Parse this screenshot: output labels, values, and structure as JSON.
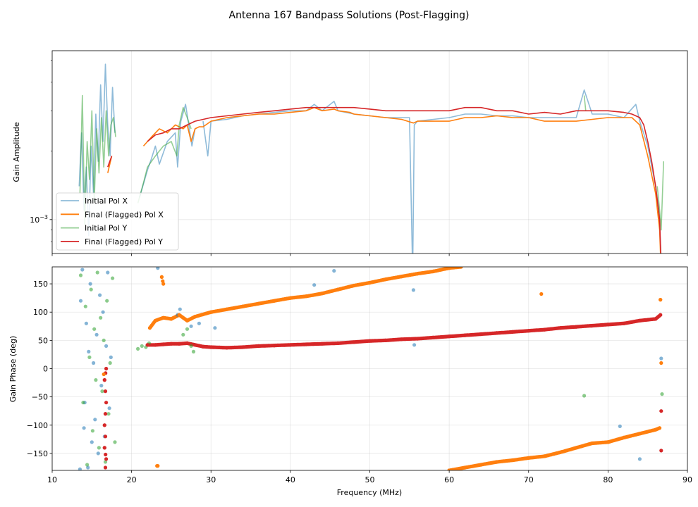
{
  "chart_data": [
    {
      "type": "line",
      "title": "Antenna 167 Bandpass Solutions (Post-Flagging)",
      "xlabel": "",
      "ylabel": "Gain Amplitude",
      "yscale": "log",
      "xlim": [
        10,
        90
      ],
      "ylim": [
        0.00071,
        0.0055
      ],
      "yticks": [
        {
          "value": 0.001,
          "label": "10^-3"
        }
      ],
      "grid": true,
      "legend_position": "lower-left",
      "series": [
        {
          "name": "Initial Pol X",
          "color": "#1f77b4",
          "alpha": 0.5,
          "x": [
            13.4,
            13.7,
            14.0,
            14.3,
            14.6,
            14.9,
            15.2,
            15.5,
            15.8,
            16.1,
            16.4,
            16.7,
            17.0,
            17.3,
            17.6,
            17.9,
            null,
            21.0,
            22.0,
            22.5,
            23.0,
            23.5,
            24.5,
            25.5,
            25.8,
            26.2,
            26.8,
            27.2,
            27.6,
            28.0,
            null,
            29.0,
            29.6,
            30.0,
            32.0,
            34.0,
            36.0,
            38.0,
            40.0,
            42.0,
            43.0,
            44.0,
            45.5,
            46.0,
            48.0,
            50.0,
            52.0,
            54.0,
            55.0,
            55.4,
            55.6,
            56.0,
            58.0,
            60.0,
            62.0,
            64.0,
            66.0,
            68.0,
            70.0,
            72.0,
            74.0,
            76.0,
            77.0,
            78.0,
            80.0,
            82.0,
            83.5,
            84.0,
            85.0,
            86.0,
            86.4,
            86.8
          ],
          "y": [
            0.0014,
            0.0024,
            0.0011,
            0.0017,
            0.00085,
            0.0021,
            0.0013,
            0.0029,
            0.0018,
            0.0039,
            0.0022,
            0.0048,
            0.0026,
            0.0019,
            0.0038,
            0.0024,
            null,
            0.00125,
            0.00165,
            0.00185,
            0.0021,
            0.00175,
            0.0022,
            0.0024,
            0.0017,
            0.0027,
            0.0032,
            0.0026,
            0.0021,
            0.0025,
            null,
            0.0027,
            0.0019,
            0.0027,
            0.00275,
            0.00285,
            0.0029,
            0.00295,
            0.003,
            0.003,
            0.0032,
            0.003,
            0.0033,
            0.003,
            0.0029,
            0.00285,
            0.0028,
            0.0028,
            0.0028,
            0.00058,
            0.0026,
            0.0027,
            0.00275,
            0.0028,
            0.0029,
            0.0029,
            0.00285,
            0.00285,
            0.0028,
            0.0028,
            0.0028,
            0.0028,
            0.0037,
            0.0029,
            0.0029,
            0.0028,
            0.0032,
            0.0027,
            0.0021,
            0.0014,
            0.0011,
            0.00055
          ]
        },
        {
          "name": "Final (Flagged) Pol X",
          "color": "#ff7f0e",
          "alpha": 1,
          "x": [
            17.0,
            17.5,
            null,
            21.5,
            22.5,
            23.5,
            24.5,
            25.5,
            26.5,
            27.0,
            27.5,
            28.0,
            28.5,
            29.0,
            30.0,
            32.0,
            34.0,
            36.0,
            38.0,
            40.0,
            42.0,
            43.0,
            44.0,
            45.5,
            46.0,
            47.5,
            48.0,
            50.0,
            52.0,
            54.0,
            55.5,
            56.0,
            58.0,
            60.0,
            62.0,
            64.0,
            66.0,
            68.0,
            70.0,
            72.0,
            74.0,
            76.0,
            78.0,
            80.0,
            82.0,
            83.0,
            84.0,
            85.0,
            86.0,
            86.5,
            86.8
          ],
          "y": [
            0.0016,
            0.0019,
            null,
            0.0021,
            0.0023,
            0.0025,
            0.0024,
            0.0026,
            0.0025,
            0.0026,
            0.0022,
            0.0025,
            0.00255,
            0.00255,
            0.0027,
            0.0028,
            0.00285,
            0.0029,
            0.0029,
            0.00295,
            0.003,
            0.0031,
            0.003,
            0.00305,
            0.003,
            0.00295,
            0.0029,
            0.00285,
            0.0028,
            0.00275,
            0.00265,
            0.0027,
            0.0027,
            0.0027,
            0.0028,
            0.0028,
            0.00285,
            0.0028,
            0.0028,
            0.0027,
            0.0027,
            0.0027,
            0.00275,
            0.0028,
            0.0028,
            0.0028,
            0.0026,
            0.0019,
            0.0013,
            0.0009,
            0.00045
          ]
        },
        {
          "name": "Initial Pol Y",
          "color": "#2ca02c",
          "alpha": 0.5,
          "x": [
            13.5,
            13.8,
            14.1,
            14.4,
            14.7,
            15.0,
            15.3,
            15.6,
            15.9,
            16.2,
            16.5,
            16.8,
            17.1,
            17.4,
            17.7,
            18.0,
            null,
            20.8,
            21.5,
            22.0,
            23.0,
            24.0,
            25.0,
            25.7,
            26.0,
            26.5,
            27.0,
            27.5,
            null,
            77.0,
            77.2,
            null,
            86.2,
            86.5,
            86.7,
            87.0
          ],
          "y": [
            0.0013,
            0.0035,
            0.00095,
            0.0022,
            0.0015,
            0.003,
            0.0012,
            0.0025,
            0.0016,
            0.0028,
            0.0017,
            0.003,
            0.0019,
            0.0026,
            0.0028,
            0.0023,
            null,
            0.00118,
            0.00145,
            0.0017,
            0.0019,
            0.0021,
            0.0022,
            0.0019,
            0.0026,
            0.0031,
            0.0028,
            0.0025,
            null,
            0.0035,
            0.003,
            null,
            0.0014,
            0.0011,
            0.0009,
            0.0018
          ]
        },
        {
          "name": "Final (Flagged) Pol Y",
          "color": "#d62728",
          "alpha": 1,
          "x": [
            17.0,
            17.5,
            null,
            22.0,
            23.0,
            24.0,
            25.0,
            26.0,
            27.0,
            28.0,
            30.0,
            32.0,
            34.0,
            36.0,
            38.0,
            40.0,
            42.0,
            44.0,
            46.0,
            48.0,
            50.0,
            52.0,
            54.0,
            56.0,
            58.0,
            60.0,
            62.0,
            64.0,
            66.0,
            68.0,
            70.0,
            72.0,
            74.0,
            76.0,
            78.0,
            80.0,
            82.0,
            83.0,
            84.0,
            84.5,
            85.0,
            85.5,
            86.0,
            86.5,
            86.8
          ],
          "y": [
            0.0017,
            0.0019,
            null,
            0.0022,
            0.00235,
            0.0024,
            0.0025,
            0.0025,
            0.0026,
            0.0027,
            0.0028,
            0.00285,
            0.0029,
            0.00295,
            0.003,
            0.00305,
            0.0031,
            0.0031,
            0.0031,
            0.0031,
            0.00305,
            0.003,
            0.003,
            0.003,
            0.003,
            0.003,
            0.0031,
            0.0031,
            0.003,
            0.003,
            0.0029,
            0.00295,
            0.0029,
            0.003,
            0.003,
            0.003,
            0.00295,
            0.0029,
            0.0028,
            0.0026,
            0.0022,
            0.0018,
            0.0014,
            0.001,
            0.00047
          ]
        }
      ]
    },
    {
      "type": "scatter",
      "title": "",
      "xlabel": "Frequency (MHz)",
      "ylabel": "Gain Phase (deg)",
      "xlim": [
        10,
        90
      ],
      "ylim": [
        -180,
        180
      ],
      "xticks": [
        10,
        20,
        30,
        40,
        50,
        60,
        70,
        80,
        90
      ],
      "yticks": [
        -150,
        -100,
        -50,
        0,
        50,
        100,
        150
      ],
      "grid": true,
      "series": [
        {
          "name": "Initial Pol X",
          "color": "#1f77b4",
          "alpha": 0.55,
          "x": [
            13.5,
            13.6,
            13.8,
            14.0,
            14.1,
            14.3,
            14.5,
            14.6,
            14.8,
            15.0,
            15.2,
            15.4,
            15.6,
            15.8,
            16.0,
            16.2,
            16.4,
            16.6,
            16.8,
            17.0,
            17.2,
            17.4,
            23.3,
            25.8,
            26.1,
            27.5,
            28.5,
            30.5,
            43.0,
            45.5,
            55.5,
            55.6,
            81.5,
            84.0,
            86.7
          ],
          "y": [
            -178,
            120,
            175,
            -105,
            -60,
            80,
            -175,
            30,
            150,
            -130,
            10,
            -90,
            60,
            -150,
            130,
            -30,
            100,
            -120,
            40,
            170,
            -70,
            20,
            178,
            95,
            105,
            75,
            80,
            72,
            148,
            173,
            139,
            42,
            -102,
            -160,
            18
          ]
        },
        {
          "name": "Final (Flagged) Pol X",
          "color": "#ff7f0e",
          "alpha": 1,
          "x": [
            16.5,
            22.3,
            23.0,
            24.0,
            25.0,
            26.0,
            27.0,
            28.0,
            30.0,
            32.0,
            34.0,
            36.0,
            38.0,
            40.0,
            42.0,
            44.0,
            46.0,
            48.0,
            50.0,
            52.0,
            54.0,
            56.0,
            58.0,
            60.0,
            61.5,
            23.8,
            24.0,
            23.3,
            71.6,
            86.6,
            86.7,
            null,
            60.0,
            62.0,
            64.0,
            66.0,
            68.0,
            70.0,
            72.0,
            74.0,
            76.0,
            78.0,
            80.0,
            82.0,
            84.0,
            86.0,
            86.5,
            23.2
          ],
          "y": [
            -10,
            72,
            85,
            90,
            88,
            95,
            85,
            92,
            100,
            105,
            110,
            115,
            120,
            125,
            128,
            133,
            140,
            147,
            152,
            158,
            163,
            168,
            172,
            178,
            180,
            162,
            150,
            -172,
            132,
            122,
            10,
            null,
            -180,
            -175,
            -170,
            -165,
            -162,
            -158,
            -155,
            -148,
            -140,
            -132,
            -130,
            -122,
            -115,
            -108,
            -105,
            -172
          ]
        },
        {
          "name": "Initial Pol Y",
          "color": "#2ca02c",
          "alpha": 0.55,
          "x": [
            13.6,
            13.9,
            14.2,
            14.4,
            14.7,
            14.9,
            15.1,
            15.3,
            15.5,
            15.7,
            15.9,
            16.1,
            16.3,
            16.5,
            16.7,
            16.9,
            17.1,
            17.3,
            17.6,
            17.9,
            20.8,
            21.3,
            21.8,
            22.2,
            26.5,
            27.0,
            27.5,
            27.8,
            77.0,
            86.8
          ],
          "y": [
            165,
            -60,
            110,
            -170,
            20,
            140,
            -110,
            70,
            -20,
            170,
            -140,
            90,
            -40,
            50,
            -165,
            120,
            -80,
            10,
            160,
            -130,
            35,
            40,
            38,
            45,
            60,
            70,
            40,
            30,
            -48,
            -45
          ]
        },
        {
          "name": "Final (Flagged) Pol Y",
          "color": "#d62728",
          "alpha": 1,
          "x": [
            16.6,
            16.7,
            16.8,
            16.7,
            16.6,
            16.8,
            16.7,
            16.6,
            16.8,
            16.7,
            22.0,
            23.0,
            24.0,
            25.0,
            26.0,
            27.0,
            28.0,
            29.0,
            30.0,
            32.0,
            34.0,
            36.0,
            38.0,
            40.0,
            42.0,
            44.0,
            46.0,
            48.0,
            50.0,
            52.0,
            54.0,
            56.0,
            58.0,
            60.0,
            62.0,
            64.0,
            66.0,
            68.0,
            70.0,
            72.0,
            74.0,
            76.0,
            78.0,
            80.0,
            82.0,
            84.0,
            86.0,
            86.6,
            86.7,
            86.7
          ],
          "y": [
            -100,
            -80,
            -60,
            -40,
            -20,
            0,
            -120,
            -140,
            -160,
            -175,
            42,
            42,
            43,
            44,
            44,
            45,
            42,
            39,
            38,
            37,
            38,
            40,
            41,
            42,
            43,
            44,
            45,
            47,
            49,
            50,
            52,
            53,
            55,
            57,
            59,
            61,
            63,
            65,
            67,
            69,
            72,
            74,
            76,
            78,
            80,
            85,
            88,
            95,
            -75,
            -145
          ]
        }
      ]
    }
  ]
}
